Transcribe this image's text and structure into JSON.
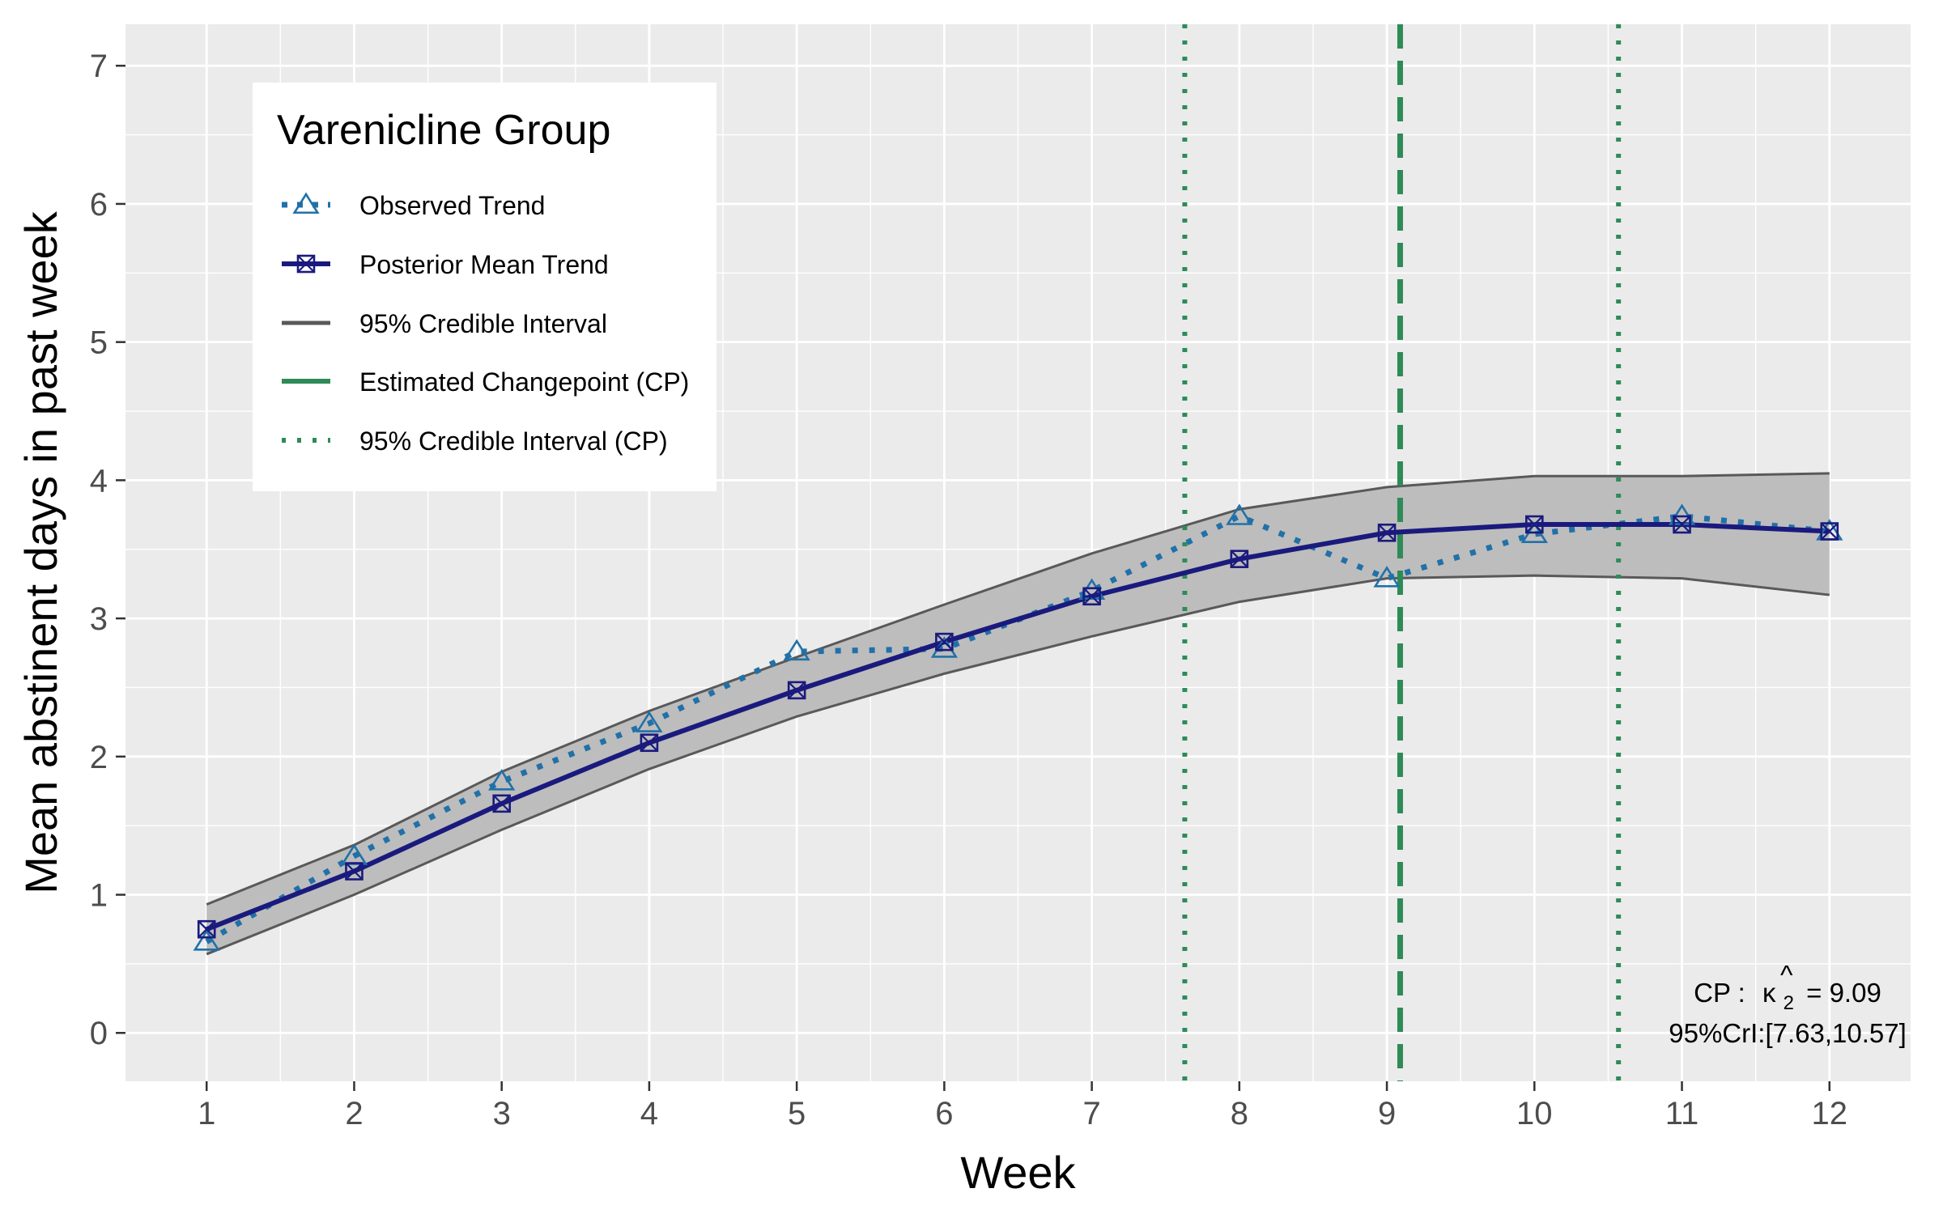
{
  "chart_data": {
    "type": "line",
    "xlabel": "Week",
    "ylabel": "Mean abstinent days in past week",
    "xlim": [
      0.45,
      12.55
    ],
    "ylim": [
      -0.35,
      7.3
    ],
    "x_ticks": [
      1,
      2,
      3,
      4,
      5,
      6,
      7,
      8,
      9,
      10,
      11,
      12
    ],
    "y_ticks": [
      0,
      1,
      2,
      3,
      4,
      5,
      6,
      7
    ],
    "grid": true,
    "legend": {
      "title": "Varenicline Group",
      "position": "top-left",
      "entries": [
        "Observed Trend",
        "Posterior Mean Trend",
        "95% Credible Interval",
        "Estimated Changepoint (CP)",
        "95% Credible Interval (CP)"
      ]
    },
    "x": [
      1,
      2,
      3,
      4,
      5,
      6,
      7,
      8,
      9,
      10,
      11,
      12
    ],
    "series": [
      {
        "name": "Observed Trend",
        "values": [
          0.66,
          1.28,
          1.82,
          2.24,
          2.76,
          2.78,
          3.2,
          3.74,
          3.29,
          3.61,
          3.74,
          3.63
        ],
        "style": "dotted",
        "marker": "triangle",
        "color": "#2171a8"
      },
      {
        "name": "Posterior Mean Trend",
        "values": [
          0.75,
          1.17,
          1.66,
          2.1,
          2.48,
          2.83,
          3.16,
          3.43,
          3.62,
          3.68,
          3.68,
          3.63
        ],
        "style": "solid",
        "marker": "boxed-x",
        "color": "#1a1a7e"
      }
    ],
    "credible_interval": {
      "lower": [
        0.57,
        1.0,
        1.47,
        1.91,
        2.29,
        2.6,
        2.87,
        3.12,
        3.29,
        3.31,
        3.29,
        3.17
      ],
      "upper": [
        0.93,
        1.36,
        1.89,
        2.33,
        2.72,
        3.1,
        3.47,
        3.79,
        3.95,
        4.03,
        4.03,
        4.05
      ],
      "fill": "#bdbdbd",
      "stroke": "#595959"
    },
    "changepoint": {
      "estimate": 9.09,
      "ci": [
        7.63,
        10.57
      ],
      "color": "#2e8b57"
    },
    "annotation": {
      "line1_prefix": "CP :",
      "hat": "^",
      "kappa": "κ",
      "subscript": "2",
      "line1_value": "= 9.09",
      "line2": "95%CrI:[7.63,10.57]"
    }
  }
}
